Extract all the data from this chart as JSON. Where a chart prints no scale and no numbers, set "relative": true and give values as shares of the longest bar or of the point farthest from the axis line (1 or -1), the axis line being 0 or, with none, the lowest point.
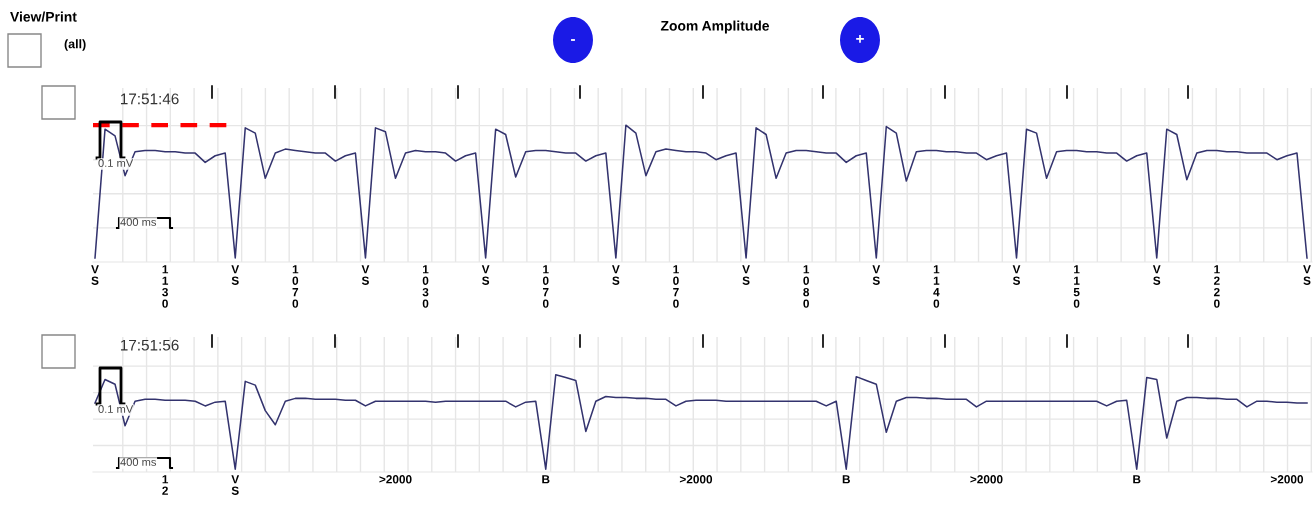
{
  "chart_data": [
    {
      "type": "other",
      "annotations": [
        "View/Print",
        "(all)",
        "-",
        "Zoom Amplitude",
        "+"
      ]
    },
    {
      "type": "line",
      "title": "17:51:46",
      "relative": true,
      "grid": true,
      "categories": [
        "V\nS",
        null,
        null,
        null,
        null,
        null,
        null,
        "1\n1\n3\n0",
        null,
        null,
        null,
        null,
        null,
        null,
        "V\nS",
        null,
        null,
        null,
        null,
        null,
        "1\n0\n7\n0",
        null,
        null,
        null,
        null,
        null,
        null,
        "V\nS",
        null,
        null,
        null,
        null,
        null,
        "1\n0\n3\n0",
        null,
        null,
        null,
        null,
        null,
        "V\nS",
        null,
        null,
        null,
        null,
        null,
        "1\n0\n7\n0",
        null,
        null,
        null,
        null,
        null,
        null,
        "V\nS",
        null,
        null,
        null,
        null,
        null,
        "1\n0\n7\n0",
        null,
        null,
        null,
        null,
        null,
        null,
        "V\nS",
        null,
        null,
        null,
        null,
        null,
        "1\n0\n8\n0",
        null,
        null,
        null,
        null,
        null,
        null,
        "V\nS",
        null,
        null,
        null,
        null,
        null,
        "1\n1\n4\n0",
        null,
        null,
        null,
        null,
        null,
        null,
        null,
        "V\nS",
        null,
        null,
        null,
        null,
        null,
        "1\n1\n5\n0",
        null,
        null,
        null,
        null,
        null,
        null,
        null,
        "V\nS",
        null,
        null,
        null,
        null,
        null,
        "1\n2\n2\n0",
        null,
        null,
        null,
        null,
        null,
        null,
        null,
        null,
        "V\nS"
      ],
      "series": [
        {
          "color": "#33336e",
          "values": [
            0,
            0.97,
            0.92,
            0.62,
            0.8,
            0.81,
            0.81,
            0.8,
            0.8,
            0.79,
            0.79,
            0.72,
            0.77,
            0.79,
            0,
            0.98,
            0.94,
            0.6,
            0.79,
            0.82,
            0.81,
            0.8,
            0.79,
            0.79,
            0.73,
            0.77,
            0.79,
            0,
            0.98,
            0.95,
            0.6,
            0.79,
            0.81,
            0.8,
            0.8,
            0.79,
            0.73,
            0.77,
            0.79,
            0,
            0.97,
            0.93,
            0.61,
            0.8,
            0.81,
            0.81,
            0.8,
            0.79,
            0.79,
            0.73,
            0.77,
            0.79,
            0,
            1.0,
            0.94,
            0.62,
            0.8,
            0.82,
            0.81,
            0.8,
            0.8,
            0.79,
            0.74,
            0.77,
            0.79,
            0,
            0.98,
            0.93,
            0.6,
            0.79,
            0.81,
            0.81,
            0.8,
            0.79,
            0.79,
            0.72,
            0.77,
            0.79,
            0,
            0.99,
            0.94,
            0.58,
            0.8,
            0.81,
            0.81,
            0.8,
            0.8,
            0.79,
            0.79,
            0.74,
            0.77,
            0.79,
            0,
            0.97,
            0.94,
            0.6,
            0.8,
            0.81,
            0.81,
            0.8,
            0.8,
            0.79,
            0.79,
            0.73,
            0.77,
            0.79,
            0,
            0.97,
            0.93,
            0.59,
            0.79,
            0.81,
            0.81,
            0.8,
            0.8,
            0.79,
            0.79,
            0.79,
            0.74,
            0.77,
            0.79,
            0
          ]
        }
      ],
      "ref_lines": [
        {
          "axis": "y",
          "value": 1,
          "color": "#ff0000",
          "line_style": "dashed"
        }
      ],
      "annotations": [
        "0.1 mV",
        "400 ms"
      ]
    },
    {
      "type": "line",
      "title": "17:51:56",
      "relative": true,
      "grid": true,
      "categories": [
        null,
        null,
        null,
        null,
        null,
        null,
        null,
        "1\n2",
        null,
        null,
        null,
        null,
        null,
        null,
        "V\nS",
        null,
        null,
        null,
        null,
        null,
        null,
        null,
        null,
        null,
        null,
        null,
        null,
        null,
        null,
        null,
        ">2000",
        null,
        null,
        null,
        null,
        null,
        null,
        null,
        null,
        null,
        null,
        null,
        null,
        null,
        null,
        "B",
        null,
        null,
        null,
        null,
        null,
        null,
        null,
        null,
        null,
        null,
        null,
        null,
        null,
        null,
        ">2000",
        null,
        null,
        null,
        null,
        null,
        null,
        null,
        null,
        null,
        null,
        null,
        null,
        null,
        null,
        "B",
        null,
        null,
        null,
        null,
        null,
        null,
        null,
        null,
        null,
        null,
        null,
        null,
        null,
        ">2000",
        null,
        null,
        null,
        null,
        null,
        null,
        null,
        null,
        null,
        null,
        null,
        null,
        null,
        null,
        "B",
        null,
        null,
        null,
        null,
        null,
        null,
        null,
        null,
        null,
        null,
        null,
        null,
        null,
        null,
        ">2000",
        null,
        null
      ],
      "series": [
        {
          "color": "#33336e",
          "values": [
            0.7,
            0.95,
            0.9,
            0.46,
            0.72,
            0.74,
            0.74,
            0.73,
            0.73,
            0.73,
            0.72,
            0.67,
            0.71,
            0.72,
            0,
            0.93,
            0.89,
            0.62,
            0.47,
            0.72,
            0.75,
            0.75,
            0.74,
            0.74,
            0.74,
            0.73,
            0.73,
            0.67,
            0.72,
            0.72,
            0.72,
            0.72,
            0.72,
            0.72,
            0.71,
            0.72,
            0.72,
            0.72,
            0.72,
            0.72,
            0.72,
            0.72,
            0.66,
            0.71,
            0.72,
            0,
            1.0,
            0.97,
            0.94,
            0.4,
            0.72,
            0.77,
            0.76,
            0.76,
            0.75,
            0.75,
            0.74,
            0.74,
            0.67,
            0.72,
            0.73,
            0.73,
            0.73,
            0.72,
            0.72,
            0.72,
            0.72,
            0.72,
            0.72,
            0.72,
            0.72,
            0.72,
            0.72,
            0.67,
            0.72,
            0,
            0.98,
            0.94,
            0.9,
            0.39,
            0.72,
            0.76,
            0.76,
            0.75,
            0.75,
            0.74,
            0.74,
            0.74,
            0.66,
            0.72,
            0.72,
            0.72,
            0.72,
            0.72,
            0.72,
            0.72,
            0.72,
            0.72,
            0.72,
            0.72,
            0.72,
            0.67,
            0.72,
            0.73,
            0,
            0.97,
            0.95,
            0.33,
            0.72,
            0.76,
            0.76,
            0.75,
            0.75,
            0.74,
            0.74,
            0.66,
            0.72,
            0.72,
            0.71,
            0.71,
            0.7,
            0.7
          ]
        }
      ],
      "annotations": [
        "0.1 mV",
        "400 ms"
      ]
    }
  ]
}
